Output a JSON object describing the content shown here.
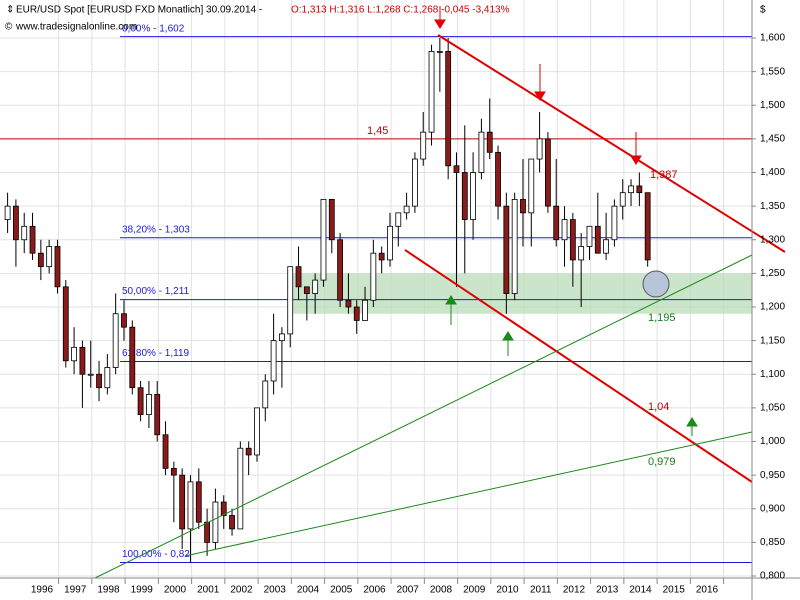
{
  "chart_data": {
    "type": "candlestick",
    "title": "EUR/USD Spot [EURUSD FXD  Monatlich] 30.09.2014 -",
    "quote": "O:1,313 H:1,316 L:1,268 C:1,268 -0,045 -3,413%",
    "source": "www.tradesignalonline.com",
    "currency": "$",
    "categories": [
      "1996",
      "1997",
      "1998",
      "1999",
      "2000",
      "2001",
      "2002",
      "2003",
      "2004",
      "2005",
      "2006",
      "2007",
      "2008",
      "2009",
      "2010",
      "2011",
      "2012",
      "2013",
      "2014",
      "2015",
      "2016"
    ],
    "ohlc": [
      [
        1.33,
        1.37,
        1.31,
        1.35
      ],
      [
        1.35,
        1.36,
        1.26,
        1.3
      ],
      [
        1.3,
        1.34,
        1.28,
        1.32
      ],
      [
        1.32,
        1.34,
        1.27,
        1.28
      ],
      [
        1.28,
        1.3,
        1.24,
        1.26
      ],
      [
        1.26,
        1.3,
        1.25,
        1.29
      ],
      [
        1.29,
        1.3,
        1.22,
        1.23
      ],
      [
        1.23,
        1.24,
        1.11,
        1.12
      ],
      [
        1.12,
        1.17,
        1.1,
        1.14
      ],
      [
        1.14,
        1.15,
        1.05,
        1.1
      ],
      [
        1.1,
        1.15,
        1.08,
        1.1
      ],
      [
        1.1,
        1.12,
        1.06,
        1.08
      ],
      [
        1.08,
        1.13,
        1.07,
        1.11
      ],
      [
        1.11,
        1.22,
        1.1,
        1.19
      ],
      [
        1.19,
        1.21,
        1.15,
        1.17
      ],
      [
        1.17,
        1.18,
        1.07,
        1.08
      ],
      [
        1.08,
        1.09,
        1.03,
        1.04
      ],
      [
        1.04,
        1.09,
        1.02,
        1.07
      ],
      [
        1.07,
        1.09,
        1.0,
        1.01
      ],
      [
        1.01,
        1.03,
        0.95,
        0.96
      ],
      [
        0.96,
        0.97,
        0.88,
        0.95
      ],
      [
        0.95,
        0.96,
        0.84,
        0.87
      ],
      [
        0.87,
        0.95,
        0.82,
        0.94
      ],
      [
        0.94,
        0.96,
        0.87,
        0.88
      ],
      [
        0.88,
        0.9,
        0.83,
        0.85
      ],
      [
        0.85,
        0.93,
        0.84,
        0.91
      ],
      [
        0.91,
        0.92,
        0.87,
        0.89
      ],
      [
        0.89,
        0.9,
        0.86,
        0.87
      ],
      [
        0.87,
        1.0,
        0.87,
        0.99
      ],
      [
        0.99,
        1.0,
        0.95,
        0.98
      ],
      [
        0.98,
        1.05,
        0.97,
        1.05
      ],
      [
        1.05,
        1.1,
        1.03,
        1.09
      ],
      [
        1.09,
        1.19,
        1.07,
        1.15
      ],
      [
        1.15,
        1.17,
        1.08,
        1.16
      ],
      [
        1.16,
        1.26,
        1.14,
        1.26
      ],
      [
        1.26,
        1.29,
        1.21,
        1.23
      ],
      [
        1.23,
        1.23,
        1.18,
        1.22
      ],
      [
        1.22,
        1.25,
        1.19,
        1.24
      ],
      [
        1.24,
        1.36,
        1.23,
        1.36
      ],
      [
        1.36,
        1.36,
        1.28,
        1.3
      ],
      [
        1.3,
        1.31,
        1.2,
        1.21
      ],
      [
        1.21,
        1.25,
        1.19,
        1.2
      ],
      [
        1.2,
        1.21,
        1.16,
        1.18
      ],
      [
        1.18,
        1.23,
        1.18,
        1.21
      ],
      [
        1.21,
        1.3,
        1.2,
        1.28
      ],
      [
        1.28,
        1.29,
        1.25,
        1.27
      ],
      [
        1.27,
        1.34,
        1.26,
        1.32
      ],
      [
        1.32,
        1.34,
        1.29,
        1.34
      ],
      [
        1.34,
        1.37,
        1.33,
        1.35
      ],
      [
        1.35,
        1.43,
        1.34,
        1.42
      ],
      [
        1.42,
        1.49,
        1.41,
        1.46
      ],
      [
        1.46,
        1.59,
        1.44,
        1.58
      ],
      [
        1.58,
        1.6,
        1.52,
        1.58
      ],
      [
        1.58,
        1.6,
        1.39,
        1.41
      ],
      [
        1.41,
        1.43,
        1.23,
        1.4
      ],
      [
        1.4,
        1.47,
        1.25,
        1.33
      ],
      [
        1.33,
        1.43,
        1.3,
        1.4
      ],
      [
        1.4,
        1.48,
        1.39,
        1.46
      ],
      [
        1.46,
        1.51,
        1.42,
        1.43
      ],
      [
        1.43,
        1.44,
        1.33,
        1.35
      ],
      [
        1.35,
        1.37,
        1.19,
        1.22
      ],
      [
        1.22,
        1.37,
        1.21,
        1.36
      ],
      [
        1.36,
        1.42,
        1.29,
        1.34
      ],
      [
        1.34,
        1.42,
        1.29,
        1.42
      ],
      [
        1.42,
        1.49,
        1.4,
        1.45
      ],
      [
        1.45,
        1.46,
        1.34,
        1.35
      ],
      [
        1.35,
        1.42,
        1.29,
        1.3
      ],
      [
        1.3,
        1.35,
        1.26,
        1.33
      ],
      [
        1.33,
        1.34,
        1.23,
        1.27
      ],
      [
        1.27,
        1.31,
        1.2,
        1.29
      ],
      [
        1.29,
        1.32,
        1.27,
        1.32
      ],
      [
        1.32,
        1.37,
        1.28,
        1.28
      ],
      [
        1.28,
        1.34,
        1.27,
        1.3
      ],
      [
        1.3,
        1.36,
        1.29,
        1.35
      ],
      [
        1.35,
        1.39,
        1.33,
        1.37
      ],
      [
        1.37,
        1.39,
        1.35,
        1.38
      ],
      [
        1.38,
        1.4,
        1.35,
        1.37
      ],
      [
        1.37,
        1.37,
        1.26,
        1.27
      ]
    ],
    "up_color": "#ffffff",
    "down_color": "#8b1a1a",
    "ylim": [
      0.8,
      1.6
    ],
    "yticks": [
      {
        "value": 0.8,
        "label": "0,800"
      },
      {
        "value": 0.85,
        "label": "0,850"
      },
      {
        "value": 0.9,
        "label": "0,900"
      },
      {
        "value": 0.95,
        "label": "0,950"
      },
      {
        "value": 1.0,
        "label": "1,000"
      },
      {
        "value": 1.05,
        "label": "1,050"
      },
      {
        "value": 1.1,
        "label": "1,100"
      },
      {
        "value": 1.15,
        "label": "1,150"
      },
      {
        "value": 1.2,
        "label": "1,200"
      },
      {
        "value": 1.25,
        "label": "1,250"
      },
      {
        "value": 1.3,
        "label": "1,300"
      },
      {
        "value": 1.35,
        "label": "1,350"
      },
      {
        "value": 1.4,
        "label": "1,400"
      },
      {
        "value": 1.45,
        "label": "1,450"
      },
      {
        "value": 1.5,
        "label": "1,500"
      },
      {
        "value": 1.55,
        "label": "1,550"
      },
      {
        "value": 1.6,
        "label": "1,600"
      }
    ],
    "grid": true,
    "fib_levels": [
      {
        "value": 1.602,
        "label": "0,00% - 1,602"
      },
      {
        "value": 1.303,
        "label": "38,20% - 1,303"
      },
      {
        "value": 1.211,
        "label": "50,00% - 1,211"
      },
      {
        "value": 1.119,
        "label": "61,80% - 1,119"
      },
      {
        "value": 0.82,
        "label": "100,00% - 0,82"
      }
    ],
    "fib_color": "#1a1adc",
    "resistance": {
      "value": 1.45,
      "label": "1,45",
      "color": "#c00000"
    },
    "zone": {
      "from": 1.19,
      "to": 1.25,
      "color": "#b8dcb8"
    },
    "annotations": [
      "1,387",
      "1,04",
      "1,195",
      "0,979"
    ]
  }
}
